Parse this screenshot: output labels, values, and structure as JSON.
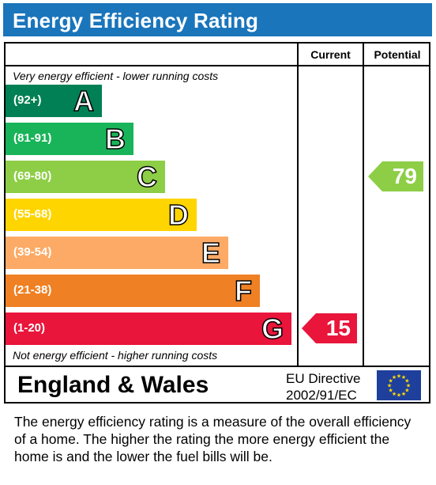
{
  "title": "Energy Efficiency Rating",
  "columns": {
    "current": "Current",
    "potential": "Potential"
  },
  "notes": {
    "top": "Very energy efficient - lower running costs",
    "bottom": "Not energy efficient - higher running costs"
  },
  "chart_data": {
    "type": "bar",
    "title": "Energy Efficiency Rating",
    "categories": [
      "A",
      "B",
      "C",
      "D",
      "E",
      "F",
      "G"
    ],
    "ranges": [
      "(92+)",
      "(81-91)",
      "(69-80)",
      "(55-68)",
      "(39-54)",
      "(21-38)",
      "(1-20)"
    ],
    "colors": [
      "#008054",
      "#19b459",
      "#8dce46",
      "#ffd500",
      "#fcaa65",
      "#ef8023",
      "#e9153b"
    ],
    "current": {
      "value": 15,
      "band": "G",
      "color": "#e9153b"
    },
    "potential": {
      "value": 79,
      "band": "C",
      "color": "#8dce46"
    }
  },
  "footer": {
    "country": "England & Wales",
    "directive_line1": "EU Directive",
    "directive_line2": "2002/91/EC"
  },
  "description": "The energy efficiency rating is a measure of the overall efficiency of a home.  The higher the rating the more energy efficient the home is and the lower the fuel bills will be."
}
